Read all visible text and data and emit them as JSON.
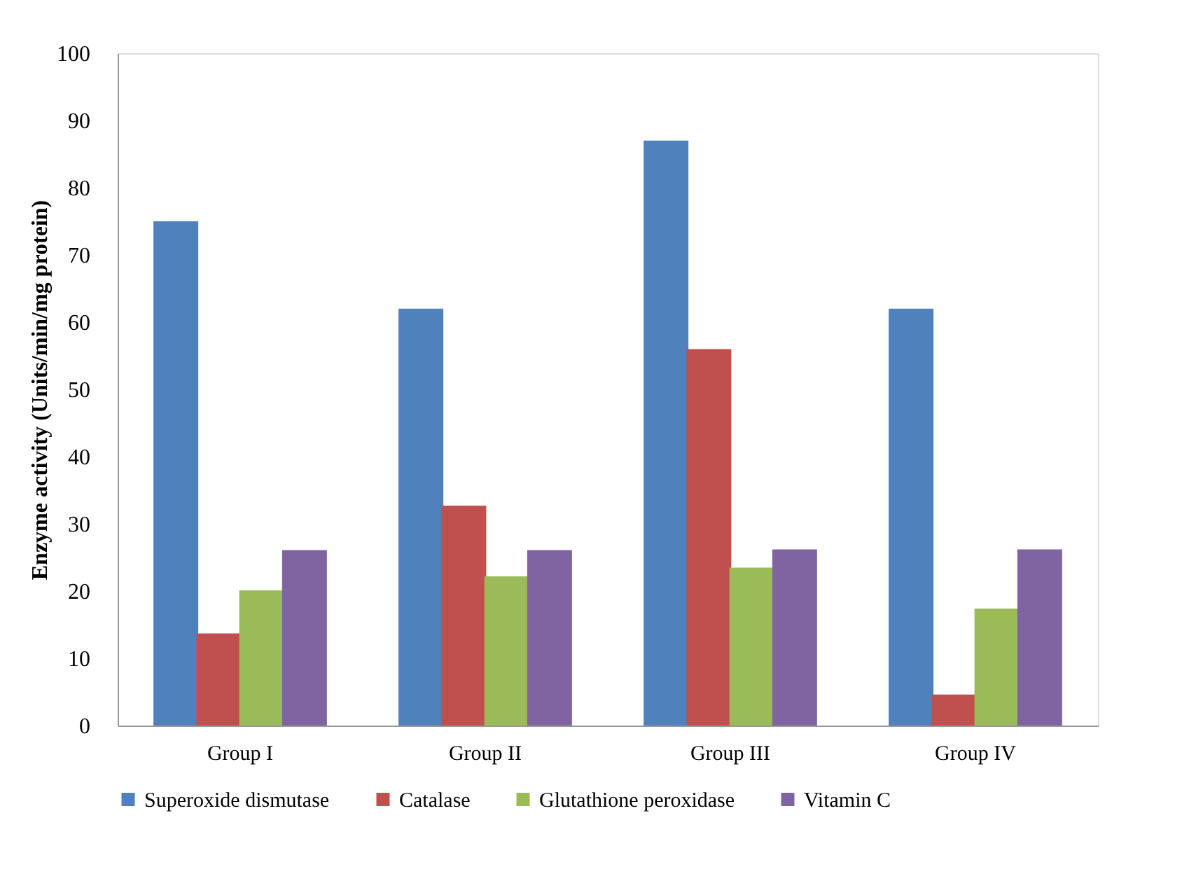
{
  "chart_data": {
    "type": "bar",
    "ylabel": "Enzyme activity (Units/min/mg protein)",
    "categories": [
      "Group I",
      "Group II",
      "Group III",
      "Group IV"
    ],
    "series": [
      {
        "name": "Superoxide dismutase",
        "color": "#4f81bd",
        "values": [
          75,
          62,
          87,
          62
        ]
      },
      {
        "name": "Catalase",
        "color": "#c0504d",
        "values": [
          13.7,
          32.7,
          56,
          4.6
        ]
      },
      {
        "name": "Glutathione peroxidase",
        "color": "#9bbb59",
        "values": [
          20.1,
          22.2,
          23.5,
          17.4
        ]
      },
      {
        "name": "Vitamin C",
        "color": "#8064a2",
        "values": [
          26.1,
          26.1,
          26.2,
          26.2
        ]
      }
    ],
    "ylim": [
      0,
      100
    ],
    "yticks": [
      0,
      10,
      20,
      30,
      40,
      50,
      60,
      70,
      80,
      90,
      100
    ],
    "grid": false,
    "legend": "bottom"
  }
}
